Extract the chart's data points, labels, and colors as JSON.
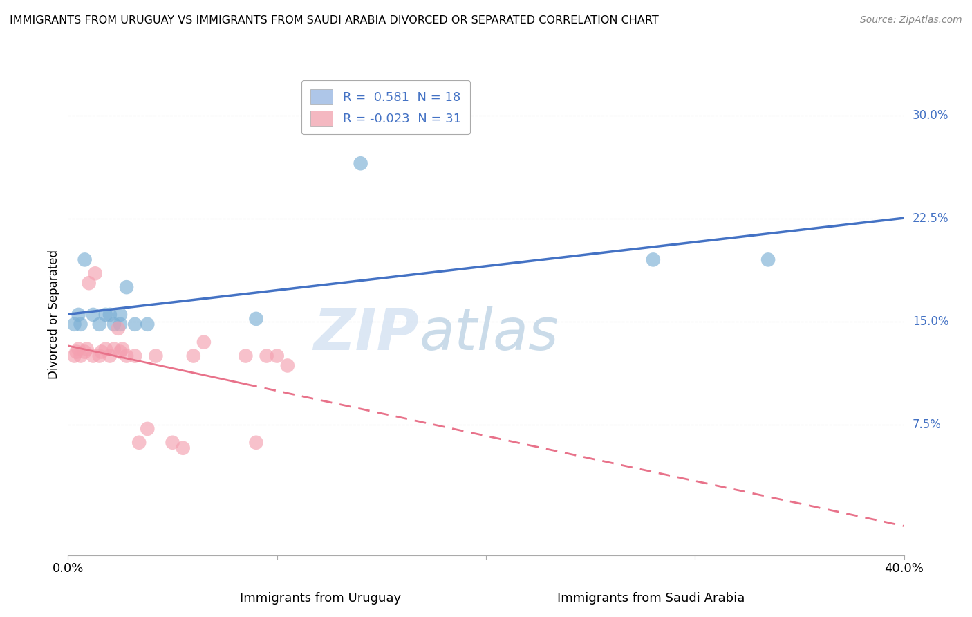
{
  "title": "IMMIGRANTS FROM URUGUAY VS IMMIGRANTS FROM SAUDI ARABIA DIVORCED OR SEPARATED CORRELATION CHART",
  "source": "Source: ZipAtlas.com",
  "ylabel": "Divorced or Separated",
  "ylabel_right_ticks": [
    "7.5%",
    "15.0%",
    "22.5%",
    "30.0%"
  ],
  "ylabel_right_vals": [
    0.075,
    0.15,
    0.225,
    0.3
  ],
  "bottom_labels": [
    "Immigrants from Uruguay",
    "Immigrants from Saudi Arabia"
  ],
  "blue_color": "#7bafd4",
  "pink_color": "#f4a0b0",
  "blue_line_color": "#4472c4",
  "pink_line_color": "#e8728a",
  "xlim": [
    0.0,
    0.4
  ],
  "ylim": [
    -0.02,
    0.33
  ],
  "blue_points_x": [
    0.005,
    0.008,
    0.012,
    0.015,
    0.018,
    0.02,
    0.022,
    0.025,
    0.025,
    0.028,
    0.032,
    0.038,
    0.09,
    0.14,
    0.28,
    0.335,
    0.003,
    0.006
  ],
  "blue_points_y": [
    0.155,
    0.195,
    0.155,
    0.148,
    0.155,
    0.155,
    0.148,
    0.155,
    0.148,
    0.175,
    0.148,
    0.148,
    0.152,
    0.265,
    0.195,
    0.195,
    0.148,
    0.148
  ],
  "pink_points_x": [
    0.003,
    0.004,
    0.005,
    0.006,
    0.008,
    0.009,
    0.01,
    0.012,
    0.013,
    0.015,
    0.016,
    0.018,
    0.02,
    0.022,
    0.024,
    0.025,
    0.026,
    0.028,
    0.032,
    0.034,
    0.038,
    0.042,
    0.05,
    0.055,
    0.06,
    0.065,
    0.085,
    0.09,
    0.095,
    0.1,
    0.105
  ],
  "pink_points_y": [
    0.125,
    0.128,
    0.13,
    0.125,
    0.128,
    0.13,
    0.178,
    0.125,
    0.185,
    0.125,
    0.128,
    0.13,
    0.125,
    0.13,
    0.145,
    0.128,
    0.13,
    0.125,
    0.125,
    0.062,
    0.072,
    0.125,
    0.062,
    0.058,
    0.125,
    0.135,
    0.125,
    0.062,
    0.125,
    0.125,
    0.118
  ],
  "watermark_zip": "ZIP",
  "watermark_atlas": "atlas",
  "grid_color": "#cccccc",
  "background_color": "#ffffff",
  "legend_label_blue": "R =  0.581  N = 18",
  "legend_label_pink": "R = -0.023  N = 31",
  "legend_color_blue": "#aec6e8",
  "legend_color_pink": "#f4b8c1"
}
